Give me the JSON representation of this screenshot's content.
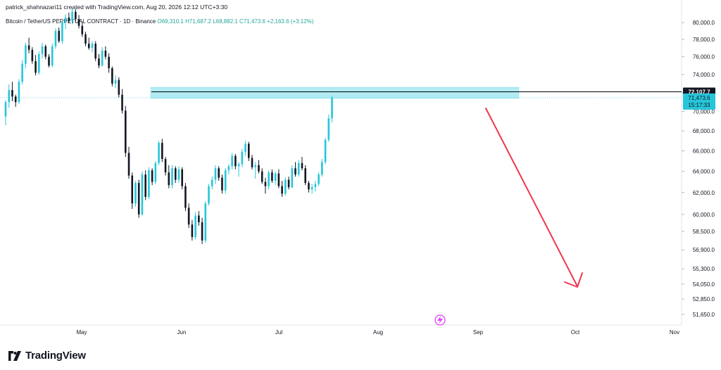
{
  "header": {
    "credit": "patrick_shahnazari11 created with TradingView.com, Aug 20, 2026 12:12 UTC+3:30",
    "symbol": "Bitcoin / TetherUS PERPETUAL CONTRACT · 1D · Binance",
    "ohlc": "O69,310.1 H71,687.2 L68,882.1 C71,473.6 +2,163.6 (+3.12%)"
  },
  "footer": {
    "brand": "TradingView",
    "logo_icon": "tradingview-logo-icon"
  },
  "colors": {
    "up": "#26c6da",
    "down": "#131722",
    "zone": "#b2ebf2",
    "arrow": "#f0374f",
    "last_price": "#26c6da",
    "level_line": "#000000"
  },
  "chart_data": {
    "type": "candlestick",
    "symbol": "BTCUSDT.P",
    "interval": "1D",
    "x_labels": [
      "May",
      "Jun",
      "Jul",
      "Aug",
      "Sep",
      "Oct",
      "Nov"
    ],
    "y_ticks": [
      "80,000.0",
      "78,000.0",
      "76,000.0",
      "74,000.0",
      "72,000.0",
      "70,000.0",
      "68,000.0",
      "66,000.0",
      "64,000.0",
      "62,000.0",
      "60,000.0",
      "58,500.0",
      "56,900.0",
      "55,300.0",
      "54,050.0",
      "52,850.0",
      "51,650.0"
    ],
    "y_scale": "log",
    "candles": [
      [
        69500,
        71200,
        68600,
        71000
      ],
      [
        71000,
        72900,
        70400,
        72300
      ],
      [
        72300,
        73200,
        71100,
        71600
      ],
      [
        71600,
        71800,
        70500,
        71000
      ],
      [
        71000,
        73500,
        70800,
        73200
      ],
      [
        73200,
        75600,
        72900,
        75200
      ],
      [
        75200,
        77600,
        74700,
        77300
      ],
      [
        77300,
        78200,
        76400,
        76800
      ],
      [
        76800,
        77100,
        75200,
        75500
      ],
      [
        75500,
        76200,
        73900,
        74200
      ],
      [
        74200,
        76600,
        74000,
        76300
      ],
      [
        76300,
        77600,
        75800,
        77200
      ],
      [
        77200,
        77400,
        75700,
        76000
      ],
      [
        76000,
        76300,
        74800,
        75000
      ],
      [
        75000,
        77500,
        74800,
        77200
      ],
      [
        77200,
        79300,
        76900,
        79000
      ],
      [
        79000,
        79400,
        77600,
        77800
      ],
      [
        77800,
        80200,
        77500,
        80000
      ],
      [
        80000,
        81000,
        79200,
        80600
      ],
      [
        80600,
        81200,
        79900,
        80200
      ],
      [
        80200,
        81700,
        79800,
        81300
      ],
      [
        81300,
        81600,
        80000,
        80400
      ],
      [
        80400,
        80900,
        79300,
        79600
      ],
      [
        79600,
        80100,
        78300,
        78600
      ],
      [
        78600,
        78900,
        77200,
        77500
      ],
      [
        77500,
        78200,
        76800,
        77000
      ],
      [
        77000,
        77800,
        76500,
        77500
      ],
      [
        77500,
        77800,
        75500,
        75800
      ],
      [
        75800,
        76300,
        74700,
        75000
      ],
      [
        75000,
        77100,
        74900,
        76700
      ],
      [
        76700,
        77200,
        75700,
        76000
      ],
      [
        76000,
        76400,
        74200,
        74700
      ],
      [
        74700,
        74900,
        72700,
        73000
      ],
      [
        73000,
        73900,
        72500,
        73400
      ],
      [
        73400,
        73700,
        71500,
        71800
      ],
      [
        71800,
        72400,
        69800,
        70100
      ],
      [
        70100,
        70600,
        65400,
        65800
      ],
      [
        65800,
        66400,
        63300,
        63600
      ],
      [
        63600,
        63900,
        60500,
        61000
      ],
      [
        61000,
        63100,
        60700,
        62900
      ],
      [
        62900,
        63200,
        59700,
        60000
      ],
      [
        60000,
        64000,
        59900,
        63700
      ],
      [
        63700,
        64100,
        61300,
        61600
      ],
      [
        61600,
        64400,
        61400,
        64100
      ],
      [
        64100,
        64300,
        62700,
        63000
      ],
      [
        63000,
        65000,
        62800,
        64800
      ],
      [
        64800,
        67000,
        64600,
        66800
      ],
      [
        66800,
        67200,
        64900,
        65200
      ],
      [
        65200,
        65400,
        63600,
        63900
      ],
      [
        63900,
        64600,
        62400,
        62700
      ],
      [
        62700,
        64600,
        62400,
        64300
      ],
      [
        64300,
        64500,
        62900,
        63200
      ],
      [
        63200,
        64500,
        62900,
        64200
      ],
      [
        64200,
        64400,
        62300,
        62600
      ],
      [
        62600,
        62900,
        60300,
        60600
      ],
      [
        60600,
        61000,
        58800,
        59100
      ],
      [
        59100,
        59500,
        57700,
        58000
      ],
      [
        58000,
        60200,
        57800,
        59900
      ],
      [
        59900,
        60300,
        59000,
        59300
      ],
      [
        59300,
        59700,
        57400,
        57700
      ],
      [
        57700,
        61200,
        57500,
        61000
      ],
      [
        61000,
        62800,
        60800,
        62600
      ],
      [
        62600,
        63500,
        62300,
        63200
      ],
      [
        63200,
        64600,
        62800,
        64300
      ],
      [
        64300,
        64500,
        63100,
        63400
      ],
      [
        63400,
        63700,
        61900,
        62200
      ],
      [
        62200,
        64300,
        61900,
        64100
      ],
      [
        64100,
        64700,
        63700,
        64500
      ],
      [
        64500,
        65800,
        64200,
        65500
      ],
      [
        65500,
        65700,
        64200,
        64500
      ],
      [
        64500,
        64900,
        63500,
        64700
      ],
      [
        64700,
        66200,
        64400,
        65900
      ],
      [
        65900,
        67000,
        65500,
        66700
      ],
      [
        66700,
        66900,
        65000,
        65300
      ],
      [
        65300,
        65600,
        64200,
        64400
      ],
      [
        64400,
        64900,
        63300,
        64600
      ],
      [
        64600,
        65100,
        63800,
        64000
      ],
      [
        64000,
        64300,
        62800,
        63000
      ],
      [
        63000,
        63400,
        61900,
        62600
      ],
      [
        62600,
        64100,
        62300,
        63900
      ],
      [
        63900,
        64200,
        62900,
        63100
      ],
      [
        63100,
        64000,
        62700,
        63800
      ],
      [
        63800,
        64200,
        62400,
        62600
      ],
      [
        62600,
        63100,
        61600,
        61900
      ],
      [
        61900,
        63400,
        61700,
        63200
      ],
      [
        63200,
        63500,
        62300,
        62500
      ],
      [
        62500,
        64600,
        62400,
        64300
      ],
      [
        64300,
        64900,
        63500,
        63700
      ],
      [
        63700,
        65100,
        63500,
        64800
      ],
      [
        64800,
        65400,
        64100,
        64300
      ],
      [
        64300,
        64600,
        62700,
        62900
      ],
      [
        62900,
        63100,
        62000,
        62300
      ],
      [
        62300,
        62800,
        61900,
        62500
      ],
      [
        62500,
        63100,
        62100,
        62800
      ],
      [
        62800,
        63900,
        62600,
        63700
      ],
      [
        63700,
        65200,
        63500,
        64900
      ],
      [
        64900,
        67300,
        64700,
        67100
      ],
      [
        67100,
        69700,
        66900,
        69300
      ],
      [
        69310.1,
        71687.2,
        68882.1,
        71473.6
      ]
    ],
    "resistance_zone": {
      "low": 71400,
      "high": 72600
    },
    "horizontal_level": 72107.7,
    "price_label": "72,107.7",
    "last_price": "71,473.6",
    "countdown": "15:17:33",
    "projection": "downward arrow into October"
  }
}
